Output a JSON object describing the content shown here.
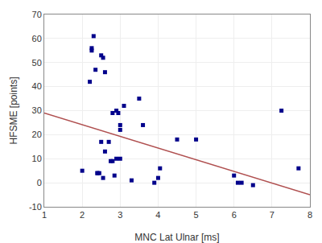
{
  "chart_data": {
    "type": "scatter",
    "xlabel": "MNC Lat Ulnar [ms]",
    "ylabel": "HFSME [points]",
    "series": [
      {
        "type": "scatter",
        "color": "#00008B",
        "marker": "square",
        "x": [
          2.0,
          2.2,
          2.25,
          2.25,
          2.3,
          2.35,
          2.4,
          2.4,
          2.45,
          2.5,
          2.5,
          2.55,
          2.55,
          2.6,
          2.6,
          2.7,
          2.75,
          2.8,
          2.8,
          2.85,
          2.9,
          2.9,
          2.95,
          3.0,
          3.0,
          3.0,
          3.1,
          3.3,
          3.5,
          3.6,
          3.9,
          4.0,
          4.05,
          4.5,
          5.0,
          6.0,
          6.1,
          6.2,
          6.5,
          7.25,
          7.7
        ],
        "values": [
          5,
          42,
          56,
          55,
          61,
          47,
          4,
          4,
          4,
          53,
          17,
          2,
          52,
          13,
          46,
          17,
          9,
          9,
          29,
          3,
          30,
          10,
          29,
          24,
          22,
          10,
          32,
          1,
          35,
          24,
          0,
          2,
          6,
          18,
          18,
          3,
          0,
          0,
          -1,
          30,
          6
        ]
      },
      {
        "type": "line",
        "color": "#B05050",
        "line_style": "solid",
        "x": [
          1.0,
          8.0
        ],
        "values": [
          29.0,
          -5.0
        ]
      }
    ],
    "xlim": [
      1,
      8
    ],
    "ylim": [
      -10,
      70
    ],
    "xticks": [
      1,
      2,
      3,
      4,
      5,
      6,
      7,
      8
    ],
    "yticks": [
      -10,
      0,
      10,
      20,
      30,
      40,
      50,
      60,
      70
    ],
    "grid": true
  }
}
